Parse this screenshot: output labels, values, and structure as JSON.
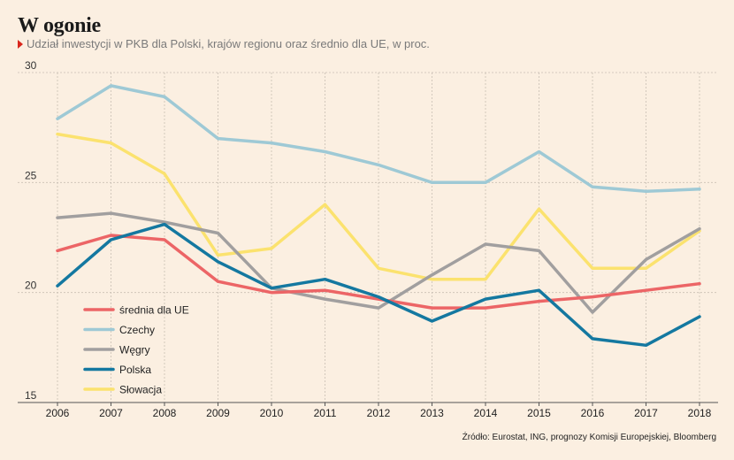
{
  "header": {
    "title": "W ogonie",
    "subtitle": "Udział inwestycji w PKB dla Polski, krajów regionu oraz średnio dla UE, w proc."
  },
  "source": "Źródło: Eurostat, ING, prognozy Komisji Europejskiej, Bloomberg",
  "chart_data": {
    "type": "line",
    "title": "W ogonie",
    "subtitle": "Udział inwestycji w PKB dla Polski, krajów regionu oraz średnio dla UE, w proc.",
    "x": [
      "2006",
      "2007",
      "2008",
      "2009",
      "2010",
      "2011",
      "2012",
      "2013",
      "2014",
      "2015",
      "2016",
      "2017",
      "2018"
    ],
    "ylim": [
      15,
      30
    ],
    "yticks": [
      15,
      20,
      25,
      30
    ],
    "grid": "dashed-vertical-and-horizontal",
    "legend": "bottom-left",
    "series": [
      {
        "name": "średnia dla UE",
        "color": "#ec6566",
        "values": [
          21.9,
          22.6,
          22.4,
          20.5,
          20.0,
          20.1,
          19.7,
          19.3,
          19.3,
          19.6,
          19.8,
          20.1,
          20.4
        ]
      },
      {
        "name": "Czechy",
        "color": "#9ec9d5",
        "values": [
          27.9,
          29.4,
          28.9,
          27.0,
          26.8,
          26.4,
          25.8,
          25.0,
          25.0,
          26.4,
          24.8,
          24.6,
          24.7
        ]
      },
      {
        "name": "Węgry",
        "color": "#a19f9f",
        "values": [
          23.4,
          23.6,
          23.2,
          22.7,
          20.2,
          19.7,
          19.3,
          20.8,
          22.2,
          21.9,
          19.1,
          21.5,
          22.9
        ]
      },
      {
        "name": "Polska",
        "color": "#1478a0",
        "values": [
          20.3,
          22.4,
          23.1,
          21.4,
          20.2,
          20.6,
          19.8,
          18.7,
          19.7,
          20.1,
          17.9,
          17.6,
          18.9
        ]
      },
      {
        "name": "Słowacja",
        "color": "#fbe26e",
        "values": [
          27.2,
          26.8,
          25.4,
          21.7,
          22.0,
          24.0,
          21.1,
          20.6,
          20.6,
          23.8,
          21.1,
          21.1,
          22.8
        ]
      }
    ]
  }
}
